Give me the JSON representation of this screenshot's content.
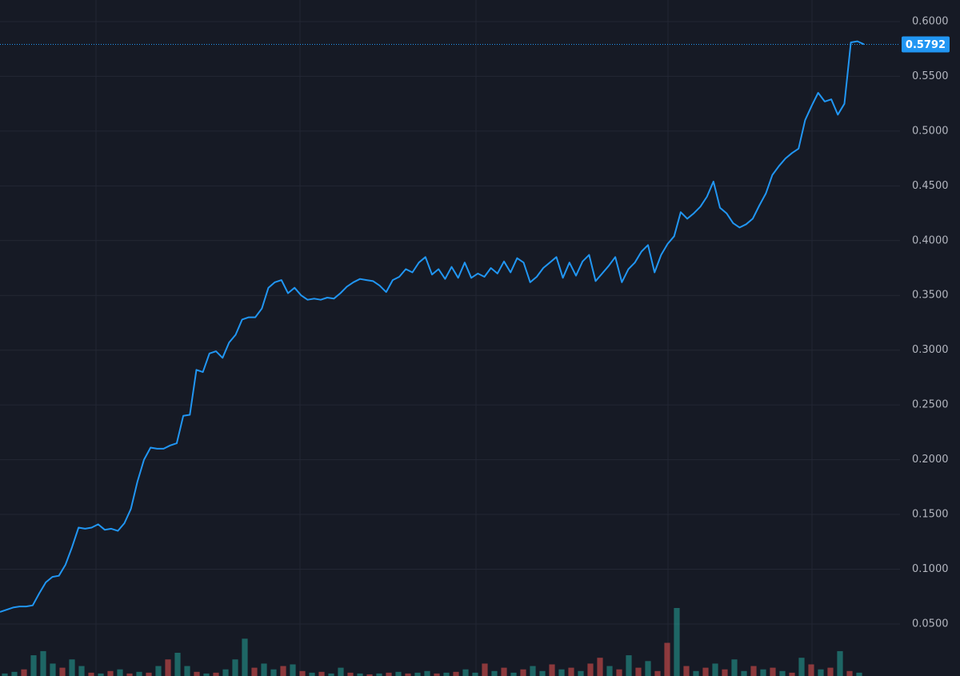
{
  "chart_data": {
    "type": "line",
    "series": [
      {
        "name": null,
        "color": "#2196f3",
        "values": [
          0.061,
          0.063,
          0.065,
          0.066,
          0.066,
          0.067,
          0.078,
          0.088,
          0.093,
          0.094,
          0.104,
          0.12,
          0.138,
          0.137,
          0.138,
          0.141,
          0.136,
          0.137,
          0.135,
          0.142,
          0.155,
          0.18,
          0.2,
          0.211,
          0.21,
          0.21,
          0.213,
          0.215,
          0.24,
          0.241,
          0.282,
          0.28,
          0.297,
          0.299,
          0.293,
          0.307,
          0.314,
          0.328,
          0.33,
          0.33,
          0.338,
          0.357,
          0.362,
          0.364,
          0.352,
          0.357,
          0.35,
          0.346,
          0.347,
          0.346,
          0.348,
          0.347,
          0.352,
          0.358,
          0.362,
          0.365,
          0.364,
          0.363,
          0.359,
          0.353,
          0.364,
          0.367,
          0.374,
          0.371,
          0.38,
          0.385,
          0.369,
          0.374,
          0.365,
          0.376,
          0.366,
          0.38,
          0.366,
          0.37,
          0.367,
          0.375,
          0.37,
          0.381,
          0.371,
          0.384,
          0.38,
          0.362,
          0.367,
          0.375,
          0.38,
          0.385,
          0.366,
          0.38,
          0.368,
          0.381,
          0.387,
          0.363,
          0.37,
          0.377,
          0.385,
          0.362,
          0.374,
          0.38,
          0.39,
          0.396,
          0.371,
          0.387,
          0.397,
          0.404,
          0.426,
          0.42,
          0.425,
          0.431,
          0.44,
          0.454,
          0.43,
          0.425,
          0.416,
          0.412,
          0.415,
          0.42,
          0.432,
          0.443,
          0.46,
          0.468,
          0.475,
          0.48,
          0.484,
          0.51,
          0.523,
          0.535,
          0.527,
          0.529,
          0.515,
          0.525,
          0.581,
          0.582,
          0.5792
        ]
      }
    ],
    "last_price": 0.5792,
    "ylim": [
      0.0025,
      0.6197
    ],
    "yticks": [
      {
        "value": 0.05,
        "label": "0.0500"
      },
      {
        "value": 0.1,
        "label": "0.1000"
      },
      {
        "value": 0.15,
        "label": "0.1500"
      },
      {
        "value": 0.2,
        "label": "0.2000"
      },
      {
        "value": 0.25,
        "label": "0.2500"
      },
      {
        "value": 0.3,
        "label": "0.3000"
      },
      {
        "value": 0.35,
        "label": "0.3500"
      },
      {
        "value": 0.4,
        "label": "0.4000"
      },
      {
        "value": 0.45,
        "label": "0.4500"
      },
      {
        "value": 0.5,
        "label": "0.5000"
      },
      {
        "value": 0.55,
        "label": "0.5500"
      },
      {
        "value": 0.6,
        "label": "0.6000"
      }
    ],
    "grid": true,
    "volume": {
      "up_color": "#26a69a",
      "down_color": "#ef5350",
      "values": [
        3,
        5,
        8,
        25,
        30,
        15,
        10,
        20,
        12,
        4,
        3,
        6,
        8,
        3,
        5,
        4,
        12,
        20,
        28,
        12,
        5,
        3,
        4,
        8,
        20,
        45,
        10,
        15,
        8,
        12,
        14,
        6,
        4,
        5,
        3,
        10,
        4,
        3,
        2,
        3,
        4,
        5,
        3,
        4,
        6,
        3,
        4,
        5,
        8,
        4,
        15,
        6,
        10,
        4,
        8,
        12,
        6,
        14,
        8,
        10,
        6,
        15,
        22,
        12,
        8,
        25,
        10,
        18,
        6,
        40,
        82,
        12,
        6,
        10,
        15,
        8,
        20,
        6,
        12,
        8,
        10,
        6,
        4,
        22,
        14,
        8,
        10,
        30,
        6,
        4
      ],
      "directions": [
        "u",
        "u",
        "d",
        "u",
        "u",
        "u",
        "d",
        "u",
        "u",
        "d",
        "u",
        "d",
        "u",
        "d",
        "u",
        "d",
        "u",
        "d",
        "u",
        "u",
        "d",
        "u",
        "d",
        "u",
        "u",
        "u",
        "d",
        "u",
        "u",
        "d",
        "u",
        "d",
        "u",
        "d",
        "u",
        "u",
        "d",
        "u",
        "d",
        "u",
        "d",
        "u",
        "d",
        "u",
        "u",
        "d",
        "u",
        "d",
        "u",
        "u",
        "d",
        "u",
        "d",
        "u",
        "d",
        "u",
        "u",
        "d",
        "u",
        "d",
        "u",
        "d",
        "d",
        "u",
        "d",
        "u",
        "d",
        "u",
        "d",
        "d",
        "u",
        "d",
        "u",
        "d",
        "u",
        "d",
        "u",
        "u",
        "d",
        "u",
        "d",
        "u",
        "d",
        "u",
        "d",
        "u",
        "d",
        "u",
        "d",
        "u"
      ]
    }
  }
}
